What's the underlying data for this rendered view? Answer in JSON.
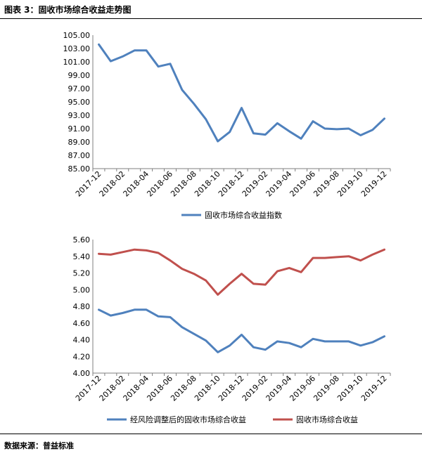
{
  "figure_title": "图表 3：固收市场综合收益走势图",
  "source_text": "数据来源：普益标准",
  "colors": {
    "blue": "#4f81bd",
    "red": "#c0504d",
    "axis": "#7f7f7f"
  },
  "chart_data": [
    {
      "type": "line",
      "title": "",
      "categories": [
        "2017-12",
        "2018-01",
        "2018-02",
        "2018-03",
        "2018-04",
        "2018-05",
        "2018-06",
        "2018-07",
        "2018-08",
        "2018-09",
        "2018-10",
        "2018-11",
        "2018-12",
        "2019-01",
        "2019-02",
        "2019-03",
        "2019-04",
        "2019-05",
        "2019-06",
        "2019-07",
        "2019-08",
        "2019-09",
        "2019-10",
        "2019-11",
        "2019-12"
      ],
      "tick_labels": [
        "2017-12",
        "2018-02",
        "2018-04",
        "2018-06",
        "2018-08",
        "2018-10",
        "2018-12",
        "2019-02",
        "2019-04",
        "2019-06",
        "2019-08",
        "2019-10",
        "2019-12"
      ],
      "yticks": [
        "85.00",
        "87.00",
        "89.00",
        "91.00",
        "93.00",
        "95.00",
        "97.00",
        "99.00",
        "101.00",
        "103.00",
        "105.00"
      ],
      "ylim": [
        85,
        105
      ],
      "series": [
        {
          "name": "固收市场综合收益指数",
          "color": "#4f81bd",
          "values": [
            103.6,
            101.1,
            101.8,
            102.7,
            102.7,
            100.3,
            100.7,
            96.8,
            94.7,
            92.4,
            89.1,
            90.5,
            94.1,
            90.3,
            90.1,
            91.8,
            90.6,
            89.5,
            92.1,
            91.0,
            90.9,
            91.0,
            90.0,
            90.8,
            92.5
          ]
        }
      ],
      "legend": "bottom-center"
    },
    {
      "type": "line",
      "title": "",
      "categories": [
        "2017-12",
        "2018-01",
        "2018-02",
        "2018-03",
        "2018-04",
        "2018-05",
        "2018-06",
        "2018-07",
        "2018-08",
        "2018-09",
        "2018-10",
        "2018-11",
        "2018-12",
        "2019-01",
        "2019-02",
        "2019-03",
        "2019-04",
        "2019-05",
        "2019-06",
        "2019-07",
        "2019-08",
        "2019-09",
        "2019-10",
        "2019-11",
        "2019-12"
      ],
      "tick_labels": [
        "2017-12",
        "2018-02",
        "2018-04",
        "2018-06",
        "2018-08",
        "2018-10",
        "2018-12",
        "2019-02",
        "2019-04",
        "2019-06",
        "2019-08",
        "2019-10",
        "2019-12"
      ],
      "yticks": [
        "4.00",
        "4.20",
        "4.40",
        "4.60",
        "4.80",
        "5.00",
        "5.20",
        "5.40",
        "5.60"
      ],
      "ylim": [
        4.0,
        5.6
      ],
      "series": [
        {
          "name": "经风险调整后的固收市场综合收益",
          "color": "#4f81bd",
          "values": [
            4.76,
            4.69,
            4.72,
            4.76,
            4.76,
            4.68,
            4.67,
            4.55,
            4.47,
            4.39,
            4.25,
            4.33,
            4.46,
            4.31,
            4.28,
            4.38,
            4.36,
            4.31,
            4.41,
            4.38,
            4.38,
            4.38,
            4.33,
            4.37,
            4.44
          ]
        },
        {
          "name": "固收市场综合收益",
          "color": "#c0504d",
          "values": [
            5.43,
            5.42,
            5.45,
            5.48,
            5.47,
            5.44,
            5.35,
            5.25,
            5.19,
            5.11,
            4.94,
            5.07,
            5.19,
            5.07,
            5.06,
            5.22,
            5.26,
            5.21,
            5.38,
            5.38,
            5.39,
            5.4,
            5.35,
            5.42,
            5.48
          ]
        }
      ],
      "legend": "bottom-center"
    }
  ]
}
